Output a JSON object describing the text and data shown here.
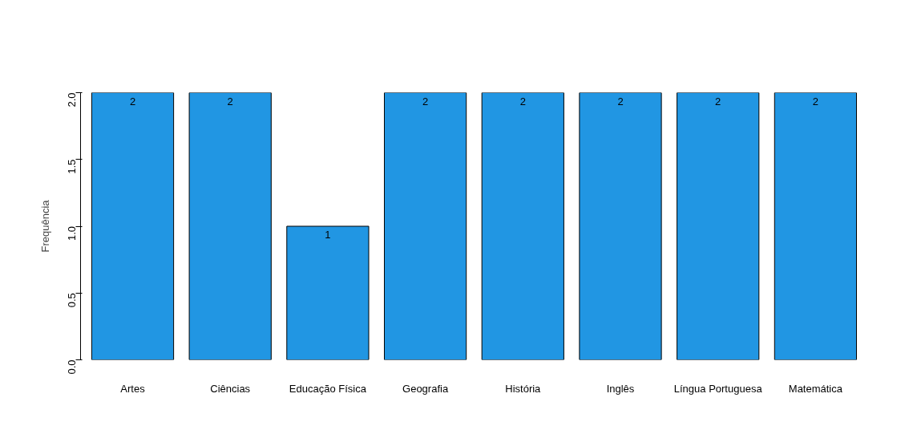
{
  "chart_data": {
    "type": "bar",
    "ylabel": "Frequência",
    "categories": [
      "Artes",
      "Ciências",
      "Educação Física",
      "Geografia",
      "História",
      "Inglês",
      "Língua Portuguesa",
      "Matemática"
    ],
    "values": [
      2,
      2,
      1,
      2,
      2,
      2,
      2,
      2
    ],
    "color": "#2196e3",
    "ylim": [
      0,
      2
    ],
    "yticks": [
      {
        "value": 0,
        "label": "0.0"
      },
      {
        "value": 0.5,
        "label": "0.5"
      },
      {
        "value": 1,
        "label": "1.0"
      },
      {
        "value": 1.5,
        "label": "1.5"
      },
      {
        "value": 2,
        "label": "2.0"
      }
    ],
    "data_labels": true,
    "grid": false
  }
}
